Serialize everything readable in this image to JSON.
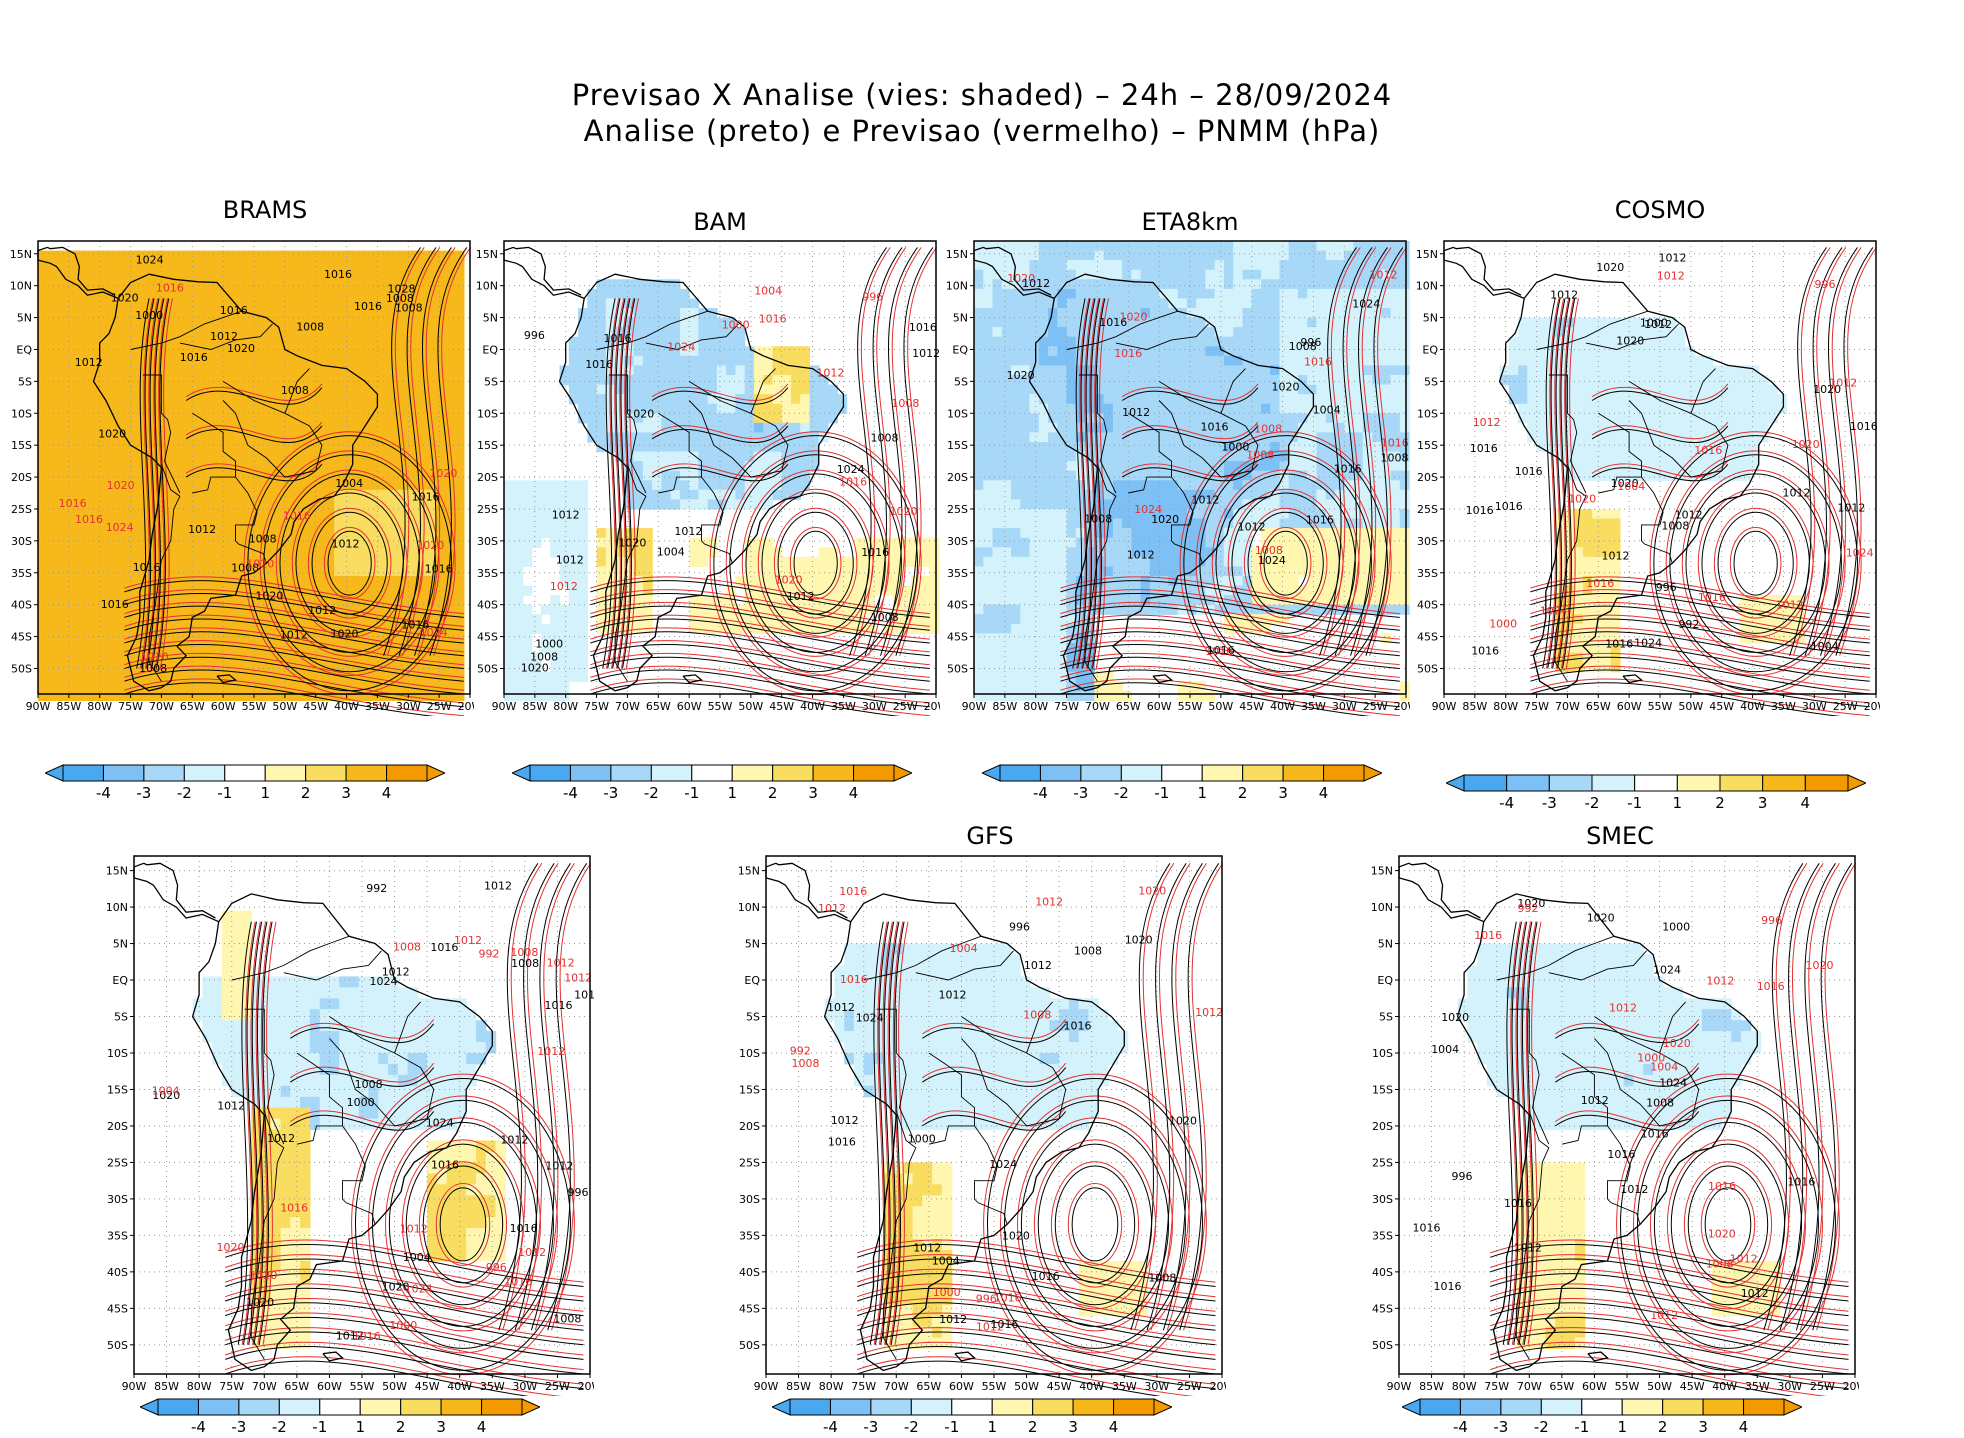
{
  "header": {
    "title_line1": "Previsao X Analise (vies: shaded) – 24h – 28/09/2024",
    "title_line2": "Analise (preto) e Previsao (vermelho) – PNMM (hPa)"
  },
  "axes": {
    "lat_labels": [
      "15N",
      "10N",
      "5N",
      "EQ",
      "5S",
      "10S",
      "15S",
      "20S",
      "25S",
      "30S",
      "35S",
      "40S",
      "45S",
      "50S"
    ],
    "lon_labels": [
      "90W",
      "85W",
      "80W",
      "75W",
      "70W",
      "65W",
      "60W",
      "55W",
      "50W",
      "45W",
      "40W",
      "35W",
      "30W",
      "25W",
      "20W"
    ]
  },
  "colorbar": {
    "ticks": [
      "-4",
      "-3",
      "-2",
      "-1",
      "1",
      "2",
      "3",
      "4"
    ],
    "colors": [
      "#4aa8f0",
      "#7cc0f5",
      "#a8d8f8",
      "#d4f2fb",
      "#ffffff",
      "#fff6b0",
      "#f9dd60",
      "#f6b81a",
      "#f39a00"
    ]
  },
  "colors": {
    "analysis_contour": "#000000",
    "forecast_contour": "#e53030",
    "grid": "#9a9a9a"
  },
  "panels": [
    {
      "title": "BRAMS",
      "shade": "warm_full",
      "black_labels": [
        "1008",
        "1008",
        "1012",
        "1012",
        "1008",
        "1008",
        "1008",
        "1016",
        "1012",
        "1016",
        "1012",
        "1016",
        "1020",
        "1016",
        "1016",
        "1020",
        "1016",
        "1012",
        "1020",
        "1008",
        "1004",
        "1000",
        "1020",
        "1016",
        "1012",
        "1008",
        "1016",
        "1028",
        "1016",
        "1020",
        "1024"
      ],
      "red_labels": [
        "1020",
        "1016",
        "1016",
        "1020",
        "1024",
        "1020",
        "1016",
        "1020",
        "1024",
        "1020",
        "1016"
      ]
    },
    {
      "title": "BAM",
      "shade": "cool_north",
      "black_labels": [
        "1012",
        "1012",
        "1008",
        "1012",
        "1016",
        "1016",
        "1020",
        "1016",
        "1012",
        "1008",
        "1004",
        "1000",
        "996",
        "1008",
        "1016",
        "1020",
        "1024",
        "1012",
        "1020"
      ],
      "red_labels": [
        "1012",
        "1020",
        "1016",
        "1008",
        "1016",
        "1020",
        "1024",
        "1004",
        "1000",
        "996",
        "1012"
      ]
    },
    {
      "title": "ETA8km",
      "shade": "cool_strong",
      "black_labels": [
        "1012",
        "1012",
        "1012",
        "1008",
        "1008",
        "1012",
        "1016",
        "1016",
        "1016",
        "1016",
        "1020",
        "1024",
        "1020",
        "1008",
        "1004",
        "1000",
        "996",
        "1012",
        "1016",
        "1020",
        "1024"
      ],
      "red_labels": [
        "1012",
        "1008",
        "1008",
        "1016",
        "1016",
        "1016",
        "1020",
        "1024",
        "1020",
        "1008",
        "1016"
      ]
    },
    {
      "title": "COSMO",
      "shade": "cool_light",
      "black_labels": [
        "1012",
        "1012",
        "1016",
        "1012",
        "1012",
        "1016",
        "1020",
        "1012",
        "1016",
        "1016",
        "1020",
        "1020",
        "1024",
        "1008",
        "1004",
        "1000",
        "996",
        "992",
        "1016",
        "1012",
        "1012",
        "1020",
        "1016",
        "1016"
      ],
      "red_labels": [
        "1012",
        "1016",
        "1016",
        "1012",
        "1012",
        "1020",
        "1024",
        "1020",
        "1004",
        "1000",
        "996",
        "1012",
        "1016",
        "1024"
      ]
    },
    {
      "title": "",
      "shade": "mixed",
      "black_labels": [
        "1012",
        "1012",
        "1012",
        "1016",
        "1008",
        "1012",
        "1016",
        "1020",
        "1020",
        "1008",
        "1012",
        "1016",
        "1020",
        "1016",
        "1024",
        "1012",
        "1008",
        "1004",
        "1000",
        "996",
        "992",
        "1012",
        "1016",
        "1024"
      ],
      "red_labels": [
        "1012",
        "1012",
        "1012",
        "1008",
        "1016",
        "1012",
        "1016",
        "1020",
        "1012",
        "1024",
        "1016",
        "1020",
        "1012",
        "1008",
        "1004",
        "1000",
        "996",
        "992"
      ]
    },
    {
      "title": "GFS",
      "shade": "cool_light",
      "black_labels": [
        "1012",
        "1012",
        "1012",
        "1012",
        "1012",
        "1016",
        "1016",
        "1020",
        "1020",
        "1016",
        "1024",
        "1020",
        "1012",
        "1008",
        "1004",
        "1000",
        "996",
        "1008",
        "1016",
        "1024"
      ],
      "red_labels": [
        "1012",
        "1008",
        "1008",
        "1016",
        "1016",
        "1012",
        "1012",
        "1020",
        "1016",
        "1012",
        "1004",
        "1000",
        "996",
        "992"
      ]
    },
    {
      "title": "SMEC",
      "shade": "cool_light",
      "black_labels": [
        "1012",
        "1012",
        "1016",
        "1016",
        "1012",
        "1016",
        "1016",
        "1020",
        "1020",
        "1016",
        "1024",
        "1020",
        "1008",
        "1004",
        "1000",
        "996",
        "1012",
        "1016",
        "1024"
      ],
      "red_labels": [
        "1012",
        "1016",
        "1016",
        "1020",
        "1012",
        "1012",
        "1016",
        "1020",
        "1020",
        "1008",
        "1004",
        "1000",
        "996",
        "992",
        "1012"
      ]
    }
  ]
}
